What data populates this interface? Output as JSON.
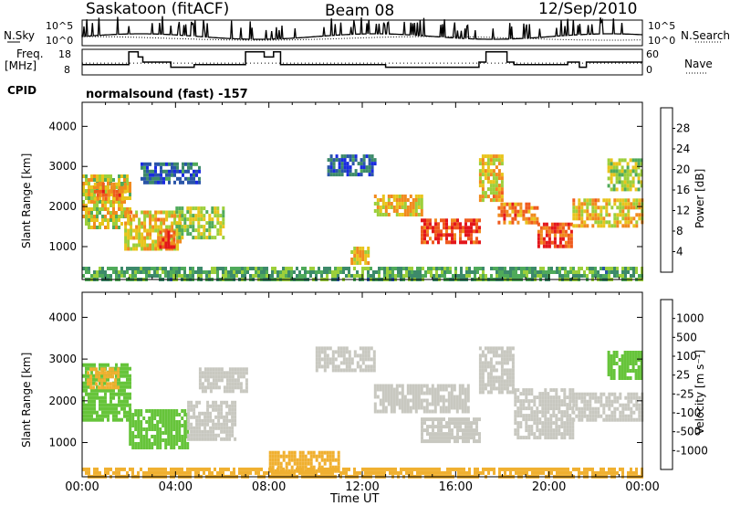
{
  "header": {
    "station": "Saskatoon (fitACF)",
    "beam": "Beam 08",
    "date": "12/Sep/2010"
  },
  "labels": {
    "nsky": "N.Sky",
    "freq": "Freq.",
    "freq_unit": "[MHz]",
    "cpid": "CPID",
    "nsearch": "N.Search",
    "nave": "Nave",
    "cpid_text": "normalsound (fast) -157",
    "nsky_ticks": [
      "10^5",
      "10^0"
    ],
    "nsearch_ticks": [
      "10^5",
      "10^0"
    ],
    "freq_ticks": [
      "18",
      "8"
    ],
    "nave_ticks": [
      "60",
      "0"
    ],
    "power_label": "Power [dB]",
    "velocity_label": "Velocity [m s⁻¹]"
  },
  "chart_data": [
    {
      "type": "line",
      "name": "noise-panel",
      "series": [
        {
          "name": "N.Sky",
          "note": "solid"
        },
        {
          "name": "N.Search",
          "note": "dotted"
        }
      ],
      "x_range": [
        "00:00",
        "24:00"
      ],
      "ylim": [
        0,
        5
      ]
    },
    {
      "type": "line",
      "name": "frequency-panel",
      "ylabel": "Freq. [MHz]",
      "ylim": [
        8,
        18
      ],
      "x": [
        0,
        1.8,
        2.0,
        2.4,
        2.6,
        3.6,
        3.8,
        4.6,
        4.8,
        6.8,
        7.0,
        7.6,
        7.8,
        8.2,
        8.5,
        12.5,
        13.0,
        17.0,
        17.3,
        18.2,
        18.5,
        20.5,
        20.8,
        21.3,
        21.6,
        24
      ],
      "values": [
        12,
        12,
        17,
        15,
        13,
        13,
        11,
        11,
        12,
        12,
        17,
        17,
        15,
        17,
        12,
        12,
        11,
        13,
        17,
        13,
        12,
        12,
        13,
        11,
        13,
        13
      ],
      "series": [
        {
          "name": "Freq.",
          "note": "solid"
        },
        {
          "name": "Nave",
          "note": "dotted, approx 30"
        }
      ]
    },
    {
      "type": "heatmap",
      "name": "power-panel",
      "xlabel": "Time UT",
      "ylabel": "Slant Range [km]",
      "x_ticks": [
        "00:00",
        "04:00",
        "08:00",
        "12:00",
        "16:00",
        "20:00",
        "00:00"
      ],
      "y_ticks": [
        1000,
        2000,
        3000,
        4000
      ],
      "ylim": [
        180,
        4600
      ],
      "colorbar_label": "Power [dB]",
      "colorbar_ticks": [
        4,
        8,
        12,
        16,
        20,
        24,
        28
      ],
      "colorbar_colors": [
        "#1a2be0",
        "#2a55a8",
        "#3d8a6a",
        "#4faa5a",
        "#9ccf3b",
        "#e8c41c",
        "#f18a1e",
        "#ef5a1d",
        "#e3161b"
      ],
      "regions": [
        {
          "t0": 0.0,
          "t1": 2.0,
          "r0": 1500,
          "r1": 2800,
          "level": 18
        },
        {
          "t0": 0.5,
          "t1": 1.8,
          "r0": 2200,
          "r1": 2600,
          "level": 24
        },
        {
          "t0": 1.8,
          "t1": 4.2,
          "r0": 900,
          "r1": 1900,
          "level": 20
        },
        {
          "t0": 3.3,
          "t1": 4.0,
          "r0": 1000,
          "r1": 1400,
          "level": 28
        },
        {
          "t0": 4.0,
          "t1": 6.0,
          "r0": 1200,
          "r1": 2000,
          "level": 16
        },
        {
          "t0": 2.5,
          "t1": 5.0,
          "r0": 2600,
          "r1": 3100,
          "level": 6
        },
        {
          "t0": 10.5,
          "t1": 12.5,
          "r0": 2800,
          "r1": 3300,
          "level": 6
        },
        {
          "t0": 11.5,
          "t1": 12.3,
          "r0": 600,
          "r1": 1000,
          "level": 20
        },
        {
          "t0": 12.5,
          "t1": 14.5,
          "r0": 1800,
          "r1": 2300,
          "level": 20
        },
        {
          "t0": 14.5,
          "t1": 17.0,
          "r0": 1100,
          "r1": 1700,
          "level": 28
        },
        {
          "t0": 17.0,
          "t1": 18.0,
          "r0": 2200,
          "r1": 3300,
          "level": 20
        },
        {
          "t0": 17.8,
          "t1": 19.5,
          "r0": 1600,
          "r1": 2100,
          "level": 24
        },
        {
          "t0": 19.5,
          "t1": 21.0,
          "r0": 1000,
          "r1": 1600,
          "level": 28
        },
        {
          "t0": 21.0,
          "t1": 24.0,
          "r0": 1500,
          "r1": 2200,
          "level": 20
        },
        {
          "t0": 22.5,
          "t1": 24.0,
          "r0": 2400,
          "r1": 3200,
          "level": 16
        },
        {
          "t0": 0.0,
          "t1": 24.0,
          "r0": 180,
          "r1": 500,
          "level": 12
        }
      ]
    },
    {
      "type": "heatmap",
      "name": "velocity-panel",
      "xlabel": "Time UT",
      "ylabel": "Slant Range [km]",
      "x_ticks": [
        "00:00",
        "04:00",
        "08:00",
        "12:00",
        "16:00",
        "20:00",
        "00:00"
      ],
      "y_ticks": [
        1000,
        2000,
        3000,
        4000
      ],
      "ylim": [
        180,
        4600
      ],
      "colorbar_label": "Velocity [m s⁻¹]",
      "colorbar_ticks": [
        1000,
        500,
        100,
        25,
        -25,
        -100,
        -500,
        -1000
      ],
      "colorbar_colors": [
        "#2233c8",
        "#2a5aa8",
        "#3a8a55",
        "#66c43a",
        "#c8c8c0",
        "#c8c8c0",
        "#f0b030",
        "#ee7a1c",
        "#e8401c",
        "#e01818"
      ],
      "regions": [
        {
          "t0": 0.0,
          "t1": 2.0,
          "r0": 1500,
          "r1": 2900,
          "level": 100
        },
        {
          "t0": 0.2,
          "t1": 1.5,
          "r0": 2300,
          "r1": 2800,
          "level": -100
        },
        {
          "t0": 2.0,
          "t1": 4.5,
          "r0": 900,
          "r1": 1800,
          "level": 100
        },
        {
          "t0": 4.5,
          "t1": 6.5,
          "r0": 1100,
          "r1": 2000,
          "level": 0
        },
        {
          "t0": 5.0,
          "t1": 7.0,
          "r0": 2200,
          "r1": 2800,
          "level": 0
        },
        {
          "t0": 10.0,
          "t1": 12.5,
          "r0": 2700,
          "r1": 3300,
          "level": 0
        },
        {
          "t0": 12.5,
          "t1": 16.5,
          "r0": 1700,
          "r1": 2400,
          "level": 0
        },
        {
          "t0": 14.5,
          "t1": 17.0,
          "r0": 1000,
          "r1": 1600,
          "level": 0
        },
        {
          "t0": 17.0,
          "t1": 18.5,
          "r0": 2200,
          "r1": 3300,
          "level": 0
        },
        {
          "t0": 18.5,
          "t1": 21.0,
          "r0": 1100,
          "r1": 2300,
          "level": 0
        },
        {
          "t0": 21.0,
          "t1": 24.0,
          "r0": 1500,
          "r1": 2200,
          "level": 0
        },
        {
          "t0": 22.5,
          "t1": 24.0,
          "r0": 2500,
          "r1": 3200,
          "level": 100
        },
        {
          "t0": 0.0,
          "t1": 24.0,
          "r0": 180,
          "r1": 400,
          "level": -100
        },
        {
          "t0": 8.0,
          "t1": 11.0,
          "r0": 300,
          "r1": 800,
          "level": -100
        }
      ]
    }
  ]
}
